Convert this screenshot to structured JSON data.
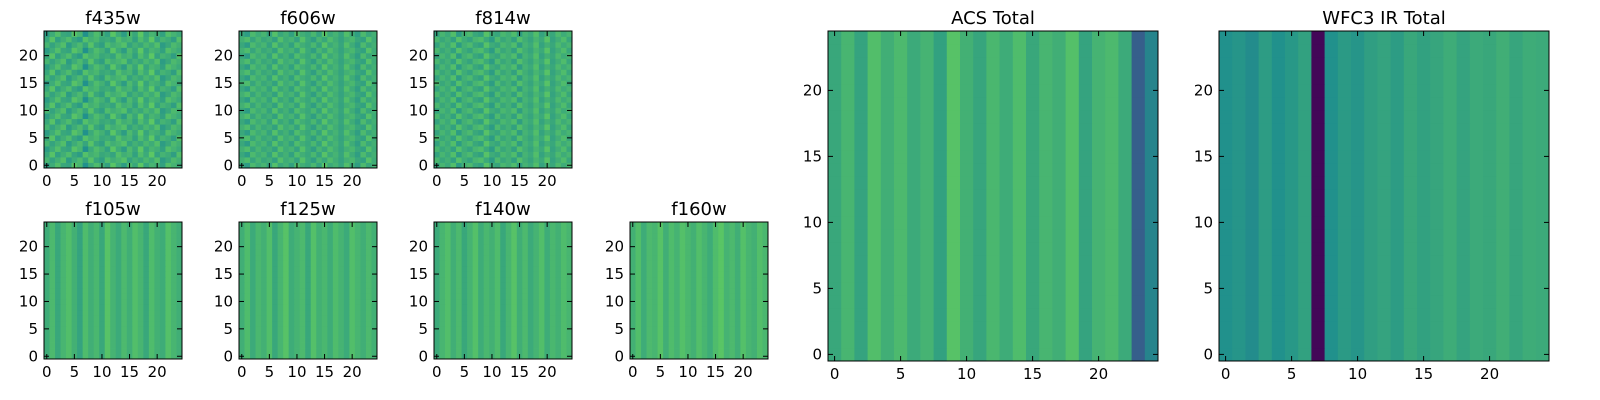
{
  "chart_data": {
    "type": "heatmap",
    "colormap": [
      "#440154",
      "#3b528b",
      "#21918c",
      "#5ec962",
      "#fde725"
    ],
    "panels": [
      {
        "id": "f435w",
        "title": "f435w",
        "grid": [
          25,
          25
        ],
        "xticks": [
          0,
          5,
          10,
          15,
          20
        ],
        "yticks": [
          0,
          5,
          10,
          15,
          20
        ],
        "xlim": [
          -0.5,
          24.5
        ],
        "ylim": [
          -0.5,
          24.5
        ],
        "values": [
          [
            0.55,
            0.62,
            0.7,
            0.6,
            0.58,
            0.72,
            0.66,
            0.5,
            0.61,
            0.69,
            0.64,
            0.57,
            0.73,
            0.62,
            0.55,
            0.68,
            0.6,
            0.74,
            0.59,
            0.66,
            0.63,
            0.57,
            0.7,
            0.65,
            0.61
          ],
          [
            0.66,
            0.58,
            0.64,
            0.7,
            0.55,
            0.62,
            0.68,
            0.59,
            0.72,
            0.6,
            0.56,
            0.69,
            0.63,
            0.66,
            0.71,
            0.58,
            0.64,
            0.6,
            0.67,
            0.62,
            0.7,
            0.55,
            0.6,
            0.68,
            0.64
          ],
          [
            0.6,
            0.72,
            0.57,
            0.63,
            0.69,
            0.59,
            0.55,
            0.71,
            0.64,
            0.67,
            0.6,
            0.62,
            0.58,
            0.7,
            0.63,
            0.66,
            0.57,
            0.69,
            0.61,
            0.74,
            0.58,
            0.65,
            0.62,
            0.56,
            0.7
          ]
        ]
      },
      {
        "id": "f606w",
        "title": "f606w",
        "grid": [
          25,
          25
        ],
        "xticks": [
          0,
          5,
          10,
          15,
          20
        ],
        "yticks": [
          0,
          5,
          10,
          15,
          20
        ],
        "xlim": [
          -0.5,
          24.5
        ],
        "ylim": [
          -0.5,
          24.5
        ],
        "values": [
          [
            0.6,
            0.55,
            0.68,
            0.62,
            0.66,
            0.58,
            0.71,
            0.6,
            0.64,
            0.57,
            0.69,
            0.63,
            0.6,
            0.67,
            0.58,
            0.72,
            0.61,
            0.65,
            0.59,
            0.7,
            0.62,
            0.56,
            0.68,
            0.6,
            0.64
          ],
          [
            0.64,
            0.69,
            0.59,
            0.66,
            0.6,
            0.63,
            0.57,
            0.7,
            0.62,
            0.65,
            0.58,
            0.71,
            0.61,
            0.56,
            0.66,
            0.6,
            0.69,
            0.63,
            0.58,
            0.64,
            0.67,
            0.6,
            0.57,
            0.71,
            0.62
          ]
        ]
      },
      {
        "id": "f814w",
        "title": "f814w",
        "grid": [
          25,
          25
        ],
        "xticks": [
          0,
          5,
          10,
          15,
          20
        ],
        "yticks": [
          0,
          5,
          10,
          15,
          20
        ],
        "xlim": [
          -0.5,
          24.5
        ],
        "ylim": [
          -0.5,
          24.5
        ],
        "values": [
          [
            0.58,
            0.66,
            0.61,
            0.7,
            0.55,
            0.64,
            0.68,
            0.6,
            0.57,
            0.72,
            0.62,
            0.59,
            0.67,
            0.63,
            0.69,
            0.56,
            0.65,
            0.61,
            0.7,
            0.58,
            0.64,
            0.6,
            0.68,
            0.62,
            0.66
          ],
          [
            0.67,
            0.6,
            0.64,
            0.57,
            0.71,
            0.62,
            0.58,
            0.66,
            0.69,
            0.61,
            0.55,
            0.68,
            0.6,
            0.64,
            0.57,
            0.7,
            0.63,
            0.59,
            0.66,
            0.61,
            0.72,
            0.58,
            0.63,
            0.69,
            0.6
          ]
        ]
      },
      {
        "id": "f105w",
        "title": "f105w",
        "grid": [
          25,
          25
        ],
        "xticks": [
          0,
          5,
          10,
          15,
          20
        ],
        "yticks": [
          0,
          5,
          10,
          15,
          20
        ],
        "xlim": [
          -0.5,
          24.5
        ],
        "ylim": [
          -0.5,
          24.5
        ],
        "values": [
          [
            0.62,
            0.68,
            0.6,
            0.66,
            0.7,
            0.64,
            0.58,
            0.69,
            0.63,
            0.67,
            0.6,
            0.72,
            0.65,
            0.61,
            0.68,
            0.63,
            0.7,
            0.66,
            0.6,
            0.69,
            0.64,
            0.62,
            0.71,
            0.66,
            0.63
          ]
        ]
      },
      {
        "id": "f125w",
        "title": "f125w",
        "grid": [
          25,
          25
        ],
        "xticks": [
          0,
          5,
          10,
          15,
          20
        ],
        "yticks": [
          0,
          5,
          10,
          15,
          20
        ],
        "xlim": [
          -0.5,
          24.5
        ],
        "ylim": [
          -0.5,
          24.5
        ],
        "values": [
          [
            0.63,
            0.69,
            0.61,
            0.67,
            0.64,
            0.7,
            0.6,
            0.66,
            0.72,
            0.62,
            0.65,
            0.68,
            0.6,
            0.71,
            0.64,
            0.67,
            0.62,
            0.69,
            0.65,
            0.61,
            0.7,
            0.66,
            0.63,
            0.68,
            0.64
          ]
        ]
      },
      {
        "id": "f140w",
        "title": "f140w",
        "grid": [
          25,
          25
        ],
        "xticks": [
          0,
          5,
          10,
          15,
          20
        ],
        "yticks": [
          0,
          5,
          10,
          15,
          20
        ],
        "xlim": [
          -0.5,
          24.5
        ],
        "ylim": [
          -0.5,
          24.5
        ],
        "values": [
          [
            0.61,
            0.66,
            0.7,
            0.63,
            0.68,
            0.6,
            0.65,
            0.71,
            0.62,
            0.67,
            0.64,
            0.69,
            0.6,
            0.66,
            0.72,
            0.63,
            0.68,
            0.61,
            0.65,
            0.7,
            0.62,
            0.67,
            0.64,
            0.69,
            0.66
          ]
        ]
      },
      {
        "id": "f160w",
        "title": "f160w",
        "grid": [
          25,
          25
        ],
        "xticks": [
          0,
          5,
          10,
          15,
          20
        ],
        "yticks": [
          0,
          5,
          10,
          15,
          20
        ],
        "xlim": [
          -0.5,
          24.5
        ],
        "ylim": [
          -0.5,
          24.5
        ],
        "values": [
          [
            0.64,
            0.7,
            0.62,
            0.68,
            0.66,
            0.72,
            0.63,
            0.69,
            0.65,
            0.71,
            0.67,
            0.64,
            0.7,
            0.66,
            0.62,
            0.69,
            0.73,
            0.65,
            0.68,
            0.63,
            0.71,
            0.66,
            0.64,
            0.7,
            0.67
          ]
        ]
      },
      {
        "id": "acs_total",
        "title": "ACS Total",
        "grid": [
          25,
          25
        ],
        "xticks": [
          0,
          5,
          10,
          15,
          20
        ],
        "yticks": [
          0,
          5,
          10,
          15,
          20
        ],
        "xlim": [
          -0.5,
          24.5
        ],
        "ylim": [
          -0.5,
          24.5
        ],
        "values": [
          [
            0.6,
            0.66,
            0.58,
            0.7,
            0.63,
            0.68,
            0.61,
            0.65,
            0.57,
            0.72,
            0.64,
            0.59,
            0.67,
            0.62,
            0.69,
            0.6,
            0.66,
            0.63,
            0.71,
            0.58,
            0.65,
            0.68,
            0.61,
            0.3,
            0.45
          ]
        ]
      },
      {
        "id": "wfc3_ir_total",
        "title": "WFC3 IR Total",
        "grid": [
          25,
          25
        ],
        "xticks": [
          0,
          5,
          10,
          15,
          20
        ],
        "yticks": [
          0,
          5,
          10,
          15,
          20
        ],
        "xlim": [
          -0.5,
          24.5
        ],
        "ylim": [
          -0.5,
          24.5
        ],
        "values": [
          [
            0.5,
            0.52,
            0.48,
            0.55,
            0.5,
            0.53,
            0.57,
            0.02,
            0.5,
            0.54,
            0.52,
            0.56,
            0.58,
            0.55,
            0.6,
            0.57,
            0.59,
            0.62,
            0.58,
            0.61,
            0.6,
            0.63,
            0.59,
            0.62,
            0.61
          ]
        ]
      }
    ]
  }
}
